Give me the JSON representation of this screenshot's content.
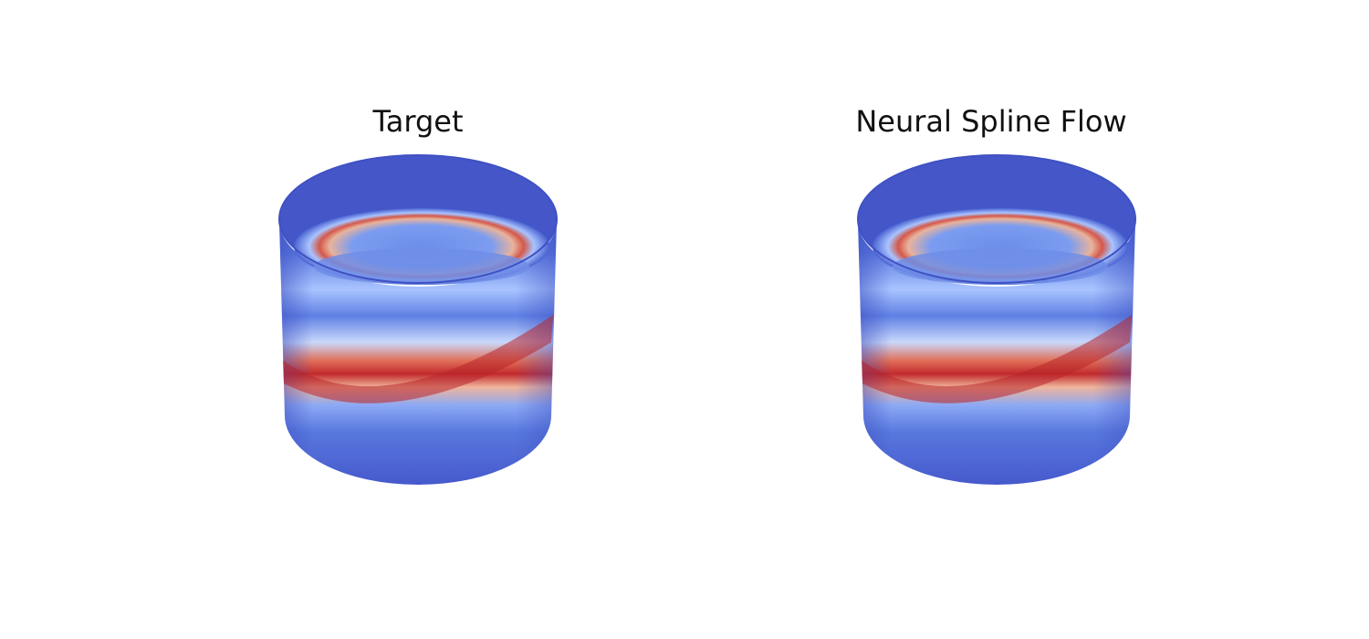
{
  "figure": {
    "panels": [
      {
        "title": "Target"
      },
      {
        "title": "Neural Spline Flow"
      }
    ],
    "colors": {
      "base": "#4a68d6",
      "dark": "#3b4cc0",
      "light": "#a8c2ff",
      "warm": "#f2c0a8",
      "red": "#c0282b",
      "darkred": "#b40426"
    }
  }
}
